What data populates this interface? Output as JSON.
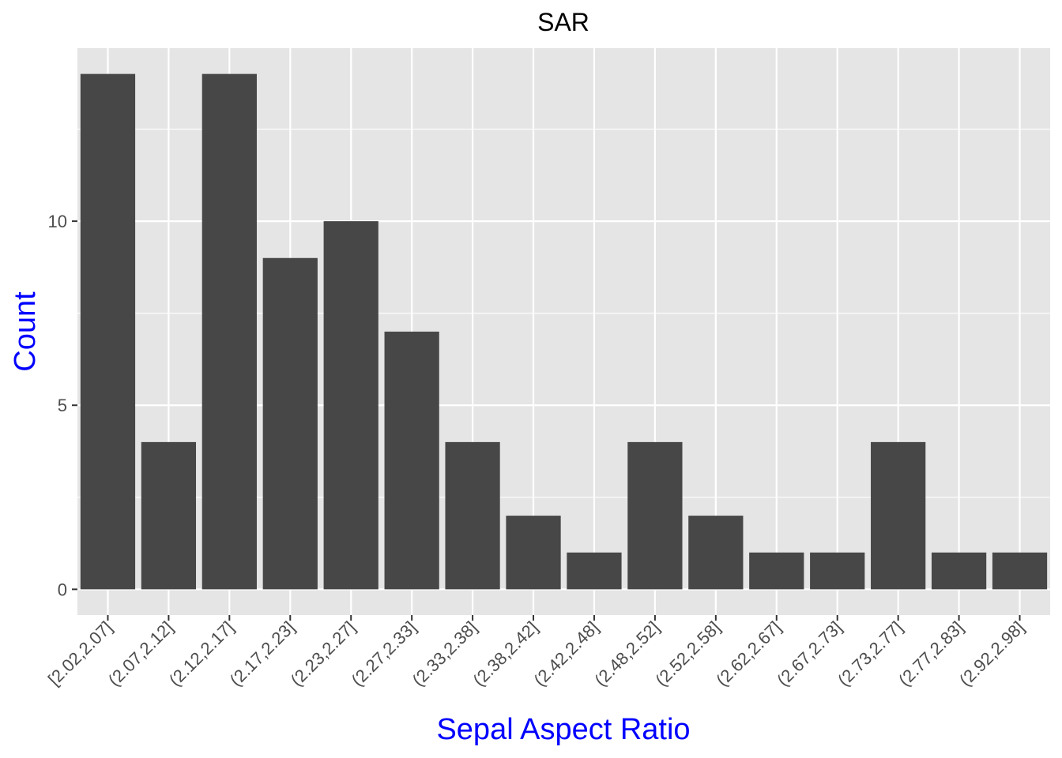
{
  "chart_data": {
    "type": "bar",
    "title": "SAR",
    "xlabel": "Sepal Aspect Ratio",
    "ylabel": "Count",
    "categories": [
      "[2.02,2.07]",
      "(2.07,2.12]",
      "(2.12,2.17]",
      "(2.17,2.23]",
      "(2.23,2.27]",
      "(2.27,2.33]",
      "(2.33,2.38]",
      "(2.38,2.42]",
      "(2.42,2.48]",
      "(2.48,2.52]",
      "(2.52,2.58]",
      "(2.62,2.67]",
      "(2.67,2.73]",
      "(2.73,2.77]",
      "(2.77,2.83]",
      "(2.92,2.98]"
    ],
    "values": [
      14,
      4,
      14,
      9,
      10,
      7,
      4,
      2,
      1,
      4,
      2,
      1,
      1,
      4,
      1,
      1
    ],
    "yticks": [
      0,
      5,
      10
    ],
    "ylim": [
      -0.7,
      14.7
    ],
    "grid": true,
    "colors": {
      "panel": "#e5e5e5",
      "grid": "#ffffff",
      "bar": "#474747",
      "axis_title": "#0000ff",
      "tick_text": "#4d4d4d",
      "tick_mark": "#333333"
    }
  }
}
